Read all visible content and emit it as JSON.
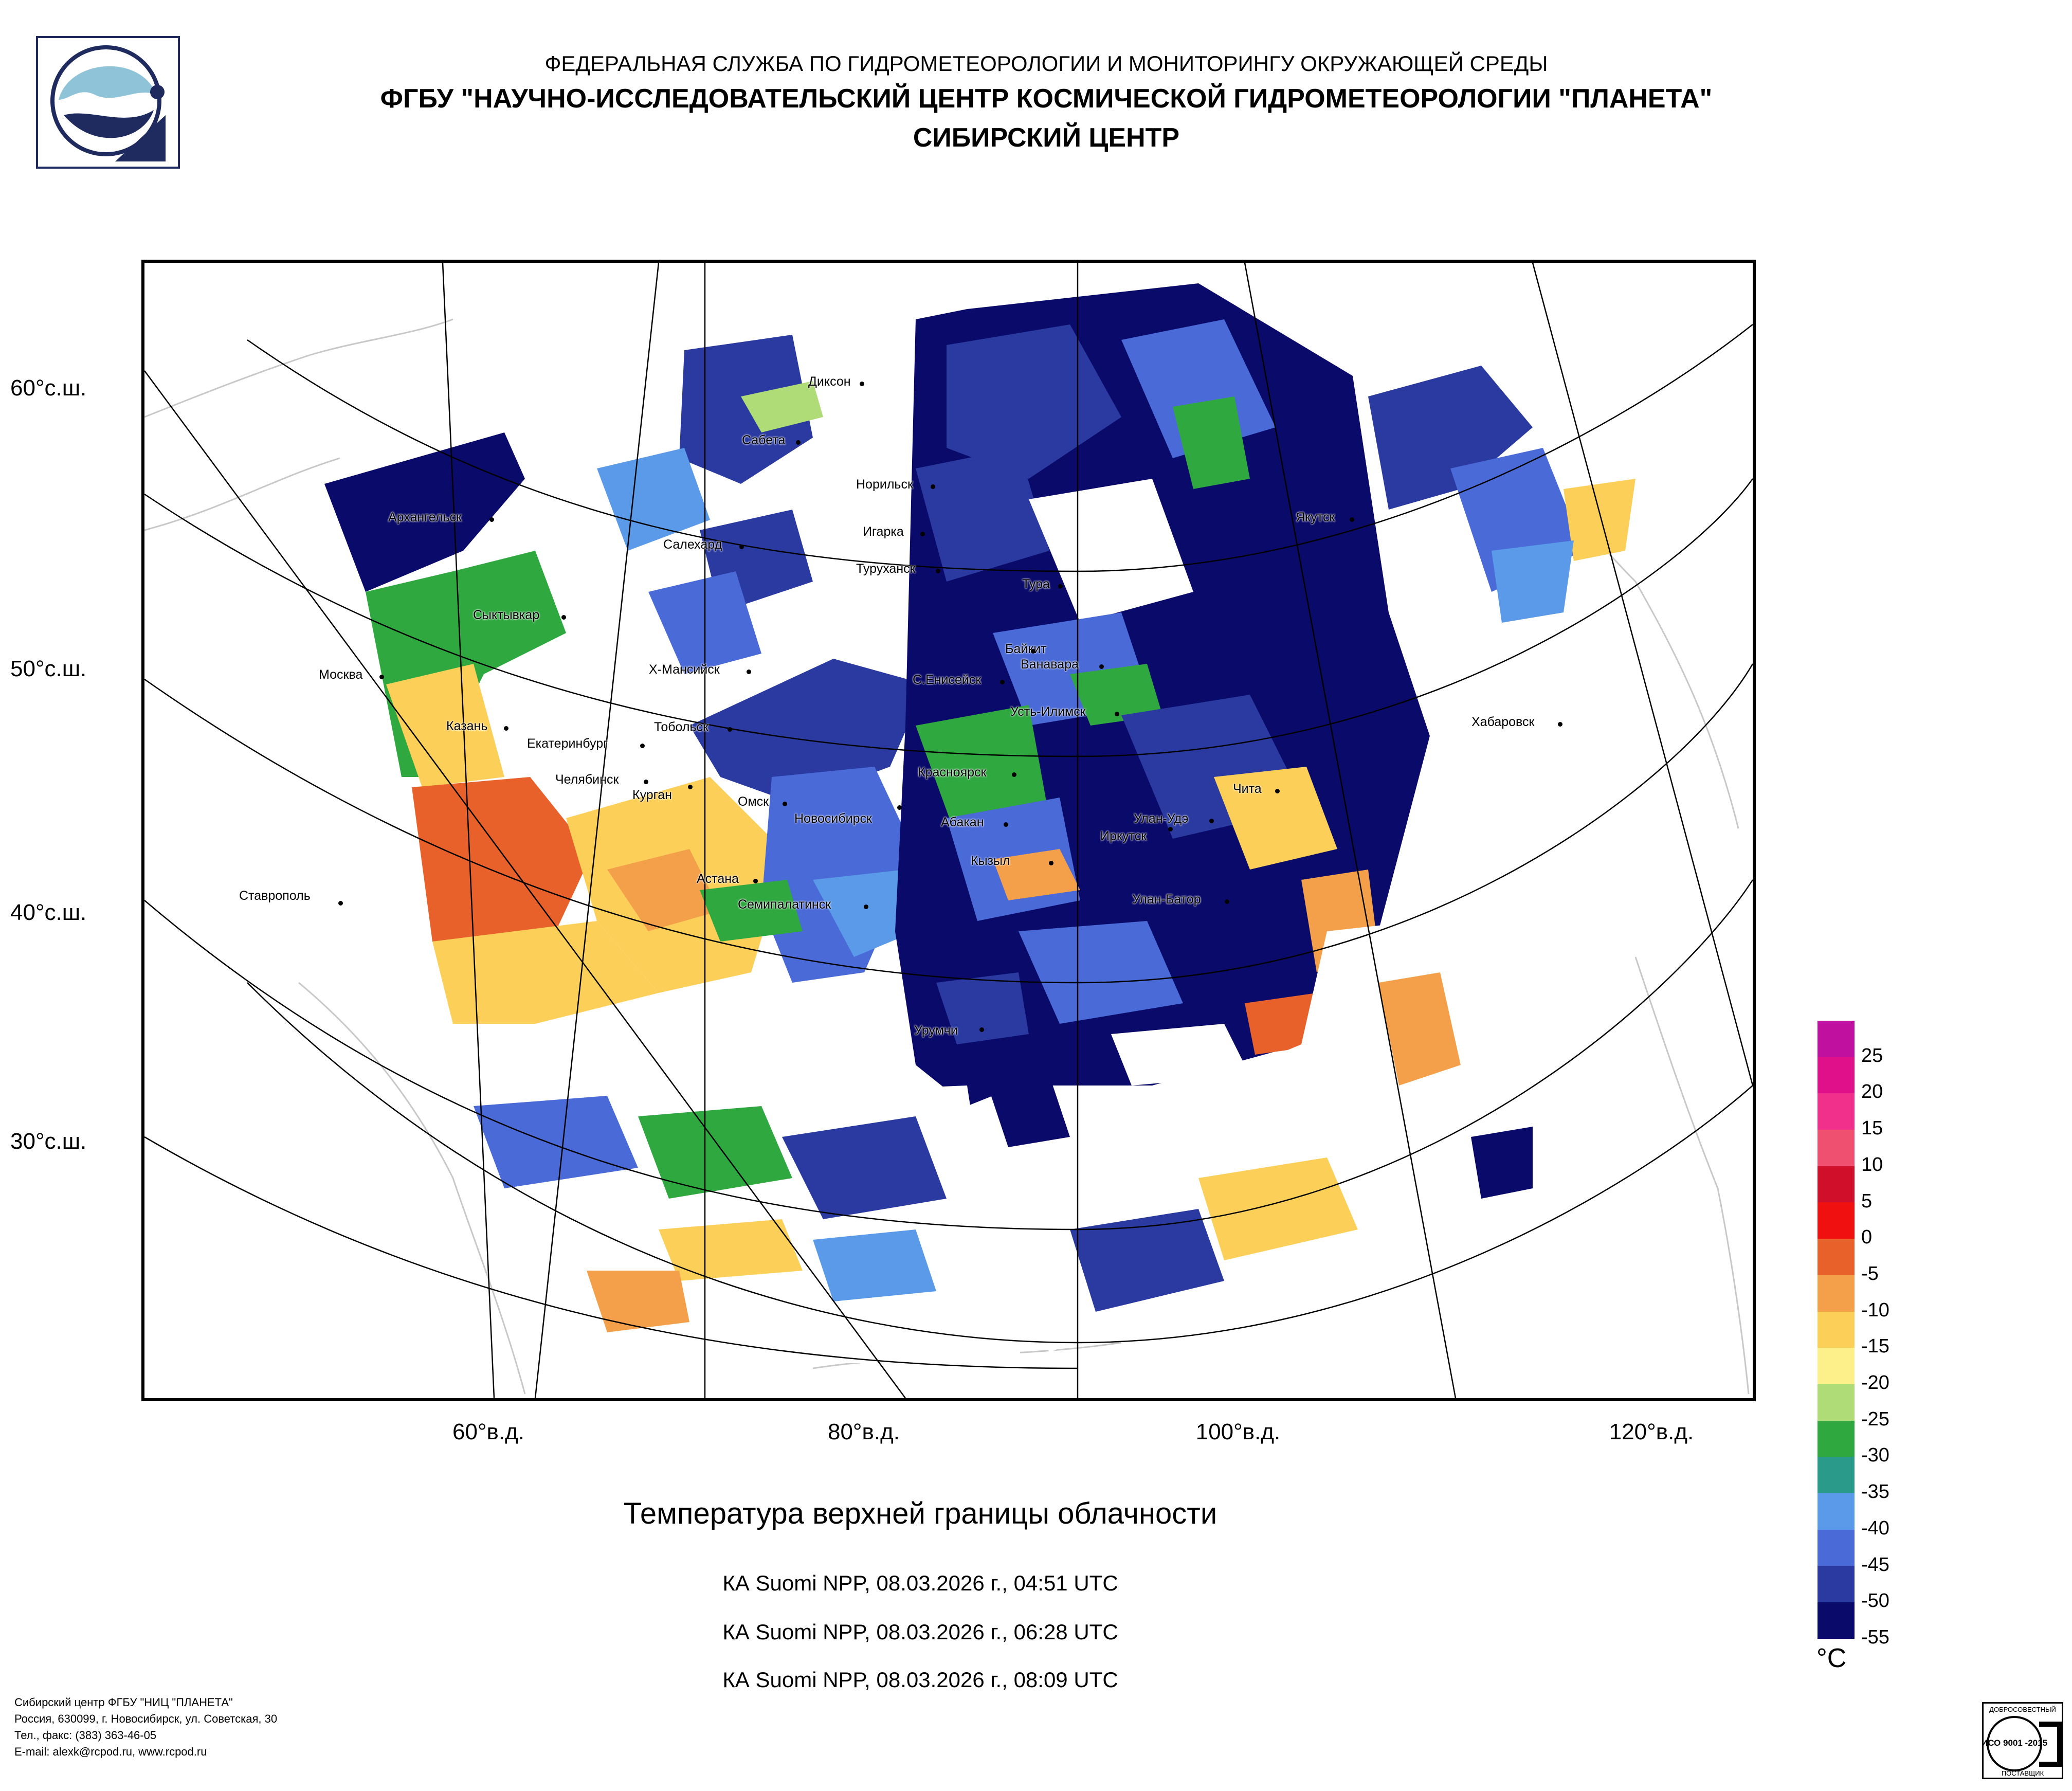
{
  "header": {
    "line1": "ФЕДЕРАЛЬНАЯ СЛУЖБА ПО ГИДРОМЕТЕОРОЛОГИИ И МОНИТОРИНГУ ОКРУЖАЮЩЕЙ СРЕДЫ",
    "line2": "ФГБУ \"НАУЧНО-ИССЛЕДОВАТЕЛЬСКИЙ ЦЕНТР КОСМИЧЕСКОЙ ГИДРОМЕТЕОРОЛОГИИ \"ПЛАНЕТА\"",
    "line3": "СИБИРСКИЙ ЦЕНТР"
  },
  "map": {
    "lat_labels": [
      "60°с.ш.",
      "50°с.ш.",
      "40°с.ш.",
      "30°с.ш."
    ],
    "lon_labels": [
      "60°в.д.",
      "80°в.д.",
      "100°в.д.",
      "120°в.д."
    ],
    "cities": [
      "Диксон",
      "Сабета",
      "Норильск",
      "Архангельск",
      "Игарка",
      "Салехард",
      "Якутск",
      "Туруханск",
      "Тура",
      "Сыктывкар",
      "Байкит",
      "Ванавара",
      "Москва",
      "Х-Мансийск",
      "С.Енисейск",
      "Усть-Илимск",
      "Казань",
      "Тобольск",
      "Хабаровск",
      "Екатеринбург",
      "Красноярск",
      "Челябинск",
      "Чита",
      "Курган",
      "Омск",
      "Новосибирск",
      "Абакан",
      "Улан-Удэ",
      "Иркутск",
      "Кызыл",
      "Астана",
      "Ставрополь",
      "Улан-Батор",
      "Семипалатинск",
      "Урумчи"
    ]
  },
  "caption": "Температура верхней границы облачности",
  "passes": [
    "КА Suomi NPP, 08.03.2026 г., 04:51 UTC",
    "КА Suomi NPP, 08.03.2026 г., 06:28 UTC",
    "КА Suomi NPP, 08.03.2026 г., 08:09 UTC"
  ],
  "legend": {
    "unit": "°C",
    "ticks": [
      "25",
      "20",
      "15",
      "10",
      "5",
      "0",
      "-5",
      "-10",
      "-15",
      "-20",
      "-25",
      "-30",
      "-35",
      "-40",
      "-45",
      "-50",
      "-55"
    ],
    "colors": [
      "#c010a0",
      "#e0108a",
      "#f0308a",
      "#f05070",
      "#d0102a",
      "#f01010",
      "#e8602a",
      "#f4a04a",
      "#fcd058",
      "#fdf08a",
      "#b0dc78",
      "#30a840",
      "#2a9a8a",
      "#5a9ae8",
      "#4a6ad8",
      "#2a3aa0",
      "#0a0a6a"
    ]
  },
  "footer": {
    "line1": "Сибирский центр ФГБУ \"НИЦ \"ПЛАНЕТА\"",
    "line2": "Россия, 630099, г. Новосибирск, ул. Советская, 30",
    "line3": "Тел., факс: (383) 363-46-05",
    "line4": "E-mail: alexk@rcpod.ru, www.rcpod.ru"
  },
  "stamp": {
    "text_top": "ДОБРОСОВЕСТНЫЙ",
    "text_mid": "ИСО 9001 -2015",
    "text_bottom": "ПОСТАВЩИК"
  }
}
